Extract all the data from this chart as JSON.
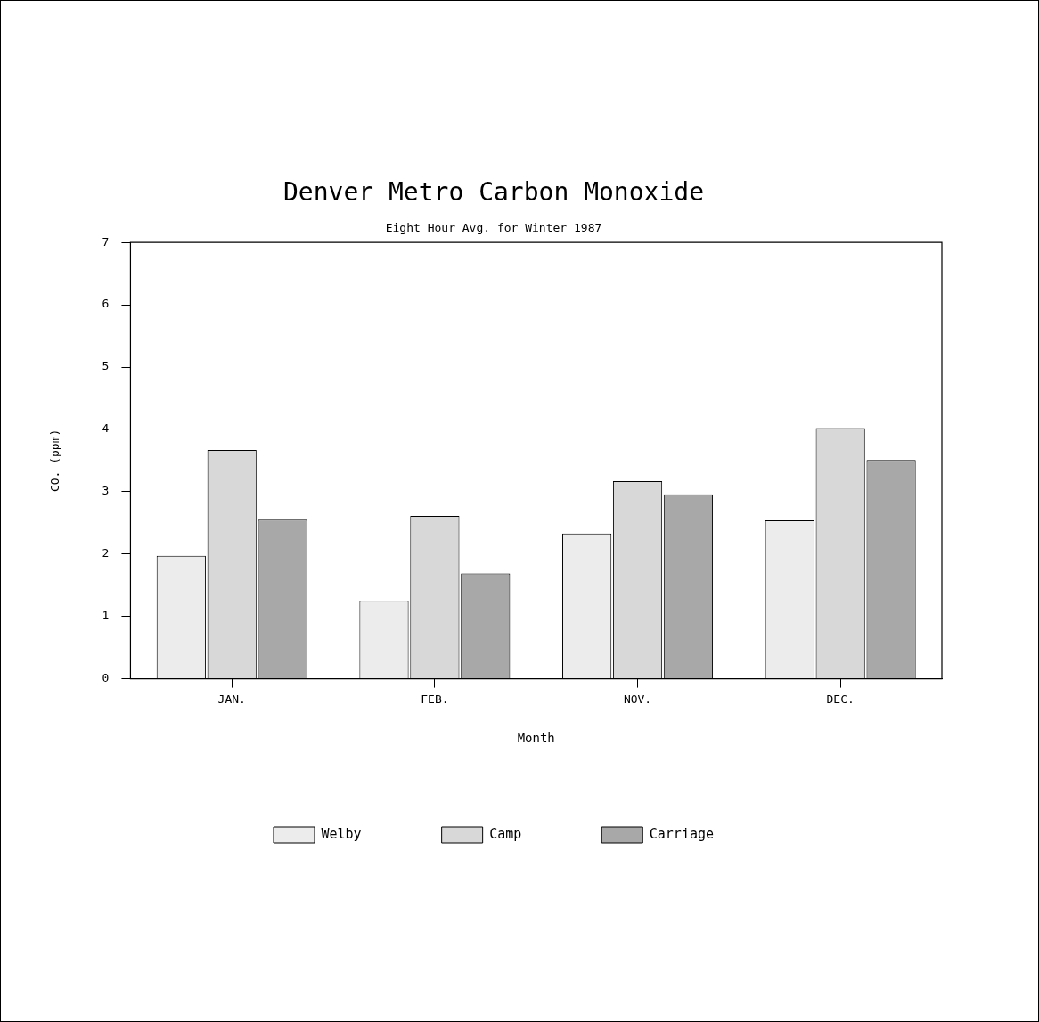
{
  "chart_data": {
    "type": "bar",
    "title": "Denver Metro Carbon Monoxide",
    "subtitle": "Eight Hour Avg. for Winter 1987",
    "xlabel": "Month",
    "ylabel": "CO. (ppm)",
    "categories": [
      "JAN.",
      "FEB.",
      "NOV.",
      "DEC."
    ],
    "series": [
      {
        "name": "Welby",
        "color": "#ececec",
        "values": [
          1.97,
          1.25,
          2.33,
          2.54
        ]
      },
      {
        "name": "Camp",
        "color": "#d8d8d8",
        "values": [
          3.67,
          2.61,
          3.17,
          4.02
        ]
      },
      {
        "name": "Carriage",
        "color": "#a8a8a8",
        "values": [
          2.55,
          1.69,
          2.96,
          3.51
        ]
      }
    ],
    "ylim": [
      0,
      7
    ],
    "yticks": [
      0,
      1,
      2,
      3,
      4,
      5,
      6,
      7
    ],
    "grid": false,
    "legend": "bottom"
  }
}
